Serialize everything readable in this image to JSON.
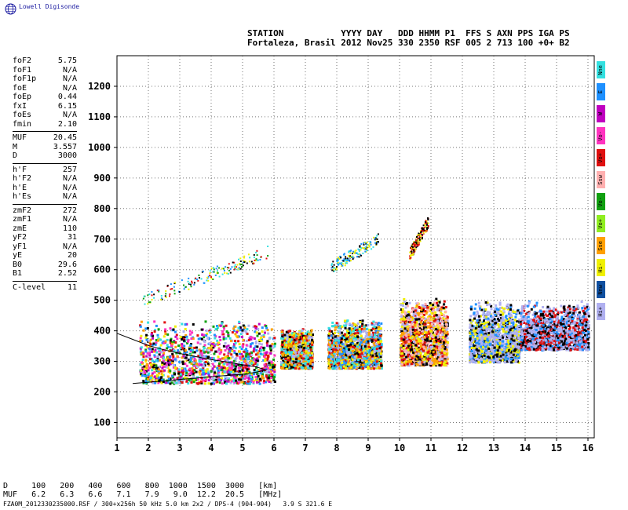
{
  "app": {
    "logo_text": "Lowell Digisonde",
    "logo_icon": "globe-icon"
  },
  "header": {
    "line1": "STATION           YYYY DAY   DDD HHMM P1  FFS S AXN PPS IGA PS",
    "line2": "Fortaleza, Brasil 2012 Nov25 330 2350 RSF 005 2 713 100 +0+ B2"
  },
  "params": [
    {
      "label": "foF2",
      "value": "5.75"
    },
    {
      "label": "foF1",
      "value": "N/A"
    },
    {
      "label": "foF1p",
      "value": "N/A"
    },
    {
      "label": "foE",
      "value": "N/A"
    },
    {
      "label": "foEp",
      "value": "0.44"
    },
    {
      "label": "fxI",
      "value": "6.15"
    },
    {
      "label": "foEs",
      "value": "N/A"
    },
    {
      "label": "fmin",
      "value": "2.10"
    },
    {
      "sep": true
    },
    {
      "label": "MUF",
      "value": "20.45"
    },
    {
      "label": "M",
      "value": "3.557"
    },
    {
      "label": "D",
      "value": "3000"
    },
    {
      "sep": true
    },
    {
      "label": "h'F",
      "value": "257"
    },
    {
      "label": "h'F2",
      "value": "N/A"
    },
    {
      "label": "h'E",
      "value": "N/A"
    },
    {
      "label": "h'Es",
      "value": "N/A"
    },
    {
      "sep": true
    },
    {
      "label": "zmF2",
      "value": "272"
    },
    {
      "label": "zmF1",
      "value": "N/A"
    },
    {
      "label": "zmE",
      "value": "110"
    },
    {
      "label": "yF2",
      "value": "31"
    },
    {
      "label": "yF1",
      "value": "N/A"
    },
    {
      "label": "yE",
      "value": "20"
    },
    {
      "label": "B0",
      "value": "29.6"
    },
    {
      "label": "B1",
      "value": "2.52"
    },
    {
      "sep": true
    },
    {
      "label": "C-level",
      "value": "11"
    }
  ],
  "legend": [
    {
      "label": "Nne",
      "color": "#33e0e0"
    },
    {
      "label": "E",
      "color": "#1e90ff"
    },
    {
      "label": "W",
      "color": "#c000c0"
    },
    {
      "label": "Vo-",
      "color": "#ff33c0"
    },
    {
      "label": "Vo+",
      "color": "#e01010"
    },
    {
      "label": "Ssw",
      "color": "#ffb0b0"
    },
    {
      "label": "Vo-",
      "color": "#10a010"
    },
    {
      "label": "Vo+",
      "color": "#90ee20"
    },
    {
      "label": "Sse",
      "color": "#ffa000"
    },
    {
      "label": "Hi-",
      "color": "#f0f000"
    },
    {
      "label": "Nnw",
      "color": "#1050a0"
    },
    {
      "label": "Hi+",
      "color": "#b0b0f0"
    }
  ],
  "muf_table": {
    "line1": "D     100   200   400   600   800  1000  1500  3000   [km]",
    "line2": "MUF   6.2   6.3   6.6   7.1   7.9   9.0  12.2  20.5   [MHz]"
  },
  "footer": "FZA0M_2012330235000.RSF / 300+x256h 50 kHz 5.0 km 2x2 / DPS-4 (904-904)   3.9 S 321.6 E",
  "chart_data": {
    "type": "scatter",
    "title": "",
    "xlabel": "",
    "ylabel": "",
    "xlim": [
      1,
      16.2
    ],
    "ylim": [
      50,
      1300
    ],
    "xticks": [
      1,
      2,
      3,
      4,
      5,
      6,
      7,
      8,
      9,
      10,
      11,
      12,
      13,
      14,
      15,
      16
    ],
    "yticks": [
      100,
      200,
      300,
      400,
      500,
      600,
      700,
      800,
      900,
      1000,
      1100,
      1200
    ],
    "grid": true,
    "echo_clusters": [
      {
        "x": [
          1.7,
          6.0
        ],
        "y": [
          230,
          440
        ],
        "colors": [
          "#e01010",
          "#1e90ff",
          "#33e0e0",
          "#f0f000",
          "#ffa000",
          "#b0b0f0",
          "#c000c0",
          "#10a010",
          "#000000",
          "#ff33c0"
        ]
      },
      {
        "x": [
          6.2,
          7.2
        ],
        "y": [
          280,
          410
        ],
        "colors": [
          "#f0f000",
          "#ffa000",
          "#b0b0f0",
          "#e01010",
          "#33e0e0",
          "#000000"
        ]
      },
      {
        "x": [
          7.7,
          9.4
        ],
        "y": [
          280,
          440
        ],
        "colors": [
          "#f0f000",
          "#ffa000",
          "#b0b0f0",
          "#e01010",
          "#1e90ff",
          "#33e0e0",
          "#000000"
        ]
      },
      {
        "x": [
          10.0,
          11.5
        ],
        "y": [
          290,
          510
        ],
        "colors": [
          "#ffa000",
          "#f0f000",
          "#e01010",
          "#b0b0f0",
          "#000000",
          "#ffb0b0"
        ]
      },
      {
        "x": [
          12.2,
          13.8
        ],
        "y": [
          300,
          500
        ],
        "colors": [
          "#b0b0f0",
          "#b0b0f0",
          "#f0f000",
          "#000000",
          "#1e90ff"
        ]
      },
      {
        "x": [
          13.8,
          16.0
        ],
        "y": [
          340,
          500
        ],
        "colors": [
          "#b0b0f0",
          "#b0b0f0",
          "#000000",
          "#1e90ff",
          "#e01010"
        ]
      }
    ],
    "upper_traces": [
      {
        "x": [
          1.8,
          5.8
        ],
        "y": [
          500,
          660
        ],
        "colors": [
          "#000000",
          "#e01010",
          "#f0f000",
          "#33e0e0",
          "#1e90ff",
          "#10a010"
        ]
      },
      {
        "x": [
          7.8,
          9.3
        ],
        "y": [
          610,
          700
        ],
        "colors": [
          "#000000",
          "#f0f000",
          "#33e0e0",
          "#1e90ff"
        ]
      },
      {
        "x": [
          10.3,
          10.9
        ],
        "y": [
          650,
          760
        ],
        "colors": [
          "#000000",
          "#e01010",
          "#f0f000"
        ]
      }
    ],
    "profile_curve": {
      "x": [
        1.0,
        1.5,
        2.0,
        2.5,
        3.0,
        3.5,
        4.0,
        4.5,
        5.0,
        5.4,
        5.75,
        5.4,
        5.0,
        4.5,
        4.0,
        3.5,
        3.0,
        2.5,
        2.0,
        1.5
      ],
      "y": [
        392,
        372,
        352,
        338,
        326,
        316,
        306,
        298,
        289,
        283,
        272,
        264,
        258,
        254,
        250,
        245,
        241,
        236,
        232,
        228
      ]
    }
  }
}
